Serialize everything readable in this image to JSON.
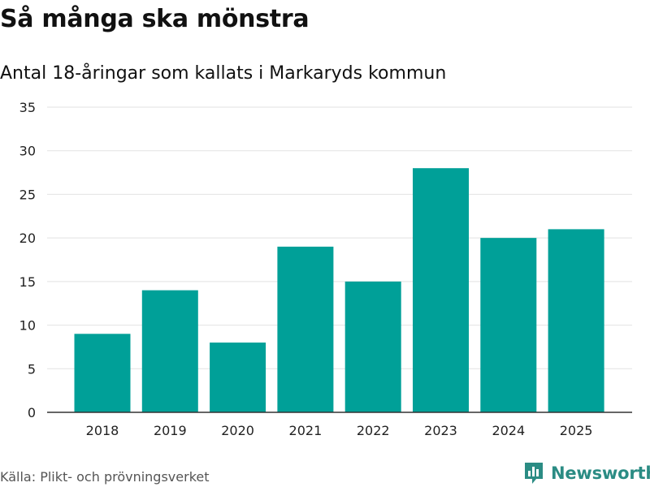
{
  "header": {
    "title": "Så många ska mönstra",
    "subtitle": "Antal 18-åringar som kallats i Markaryds kommun"
  },
  "footer": {
    "source": "Källa: Plikt- och prövningsverket",
    "brand": "Newsworthy",
    "brand_icon": "bar-chart-badge-icon"
  },
  "colors": {
    "bar": "#00a098",
    "grid": "#e2e2e2",
    "axis": "#333333",
    "brand": "#2b8c84"
  },
  "chart_data": {
    "type": "bar",
    "title": "Så många ska mönstra",
    "subtitle": "Antal 18-åringar som kallats i Markaryds kommun",
    "xlabel": "",
    "ylabel": "",
    "categories": [
      "2018",
      "2019",
      "2020",
      "2021",
      "2022",
      "2023",
      "2024",
      "2025"
    ],
    "values": [
      9,
      14,
      8,
      19,
      15,
      28,
      20,
      21
    ],
    "ylim": [
      0,
      35
    ],
    "yticks": [
      0,
      5,
      10,
      15,
      20,
      25,
      30,
      35
    ],
    "grid": true,
    "legend": "none"
  }
}
